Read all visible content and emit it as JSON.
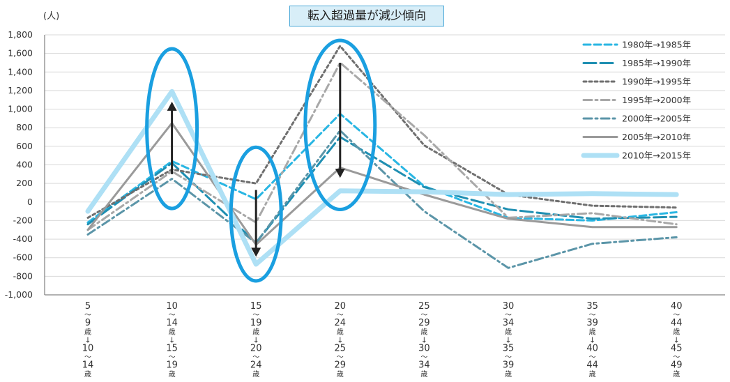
{
  "chart_data": {
    "type": "line",
    "title": "転入超過量が減少傾向",
    "ylabel": "(人)",
    "xlabel": "",
    "ylim": [
      -1000,
      1800
    ],
    "yticks": [
      -1000,
      -800,
      -600,
      -400,
      -200,
      0,
      200,
      400,
      600,
      800,
      1000,
      1200,
      1400,
      1600,
      1800
    ],
    "ytick_labels": [
      "-1,000",
      "-800",
      "-600",
      "-400",
      "-200",
      "0",
      "200",
      "400",
      "600",
      "800",
      "1,000",
      "1,200",
      "1,400",
      "1,600",
      "1,800"
    ],
    "grid": true,
    "legend_position": "top-right",
    "categories": [
      [
        "5",
        "～",
        "9",
        "歳",
        "↓",
        "10",
        "～",
        "14",
        "歳"
      ],
      [
        "10",
        "～",
        "14",
        "歳",
        "↓",
        "15",
        "～",
        "19",
        "歳"
      ],
      [
        "15",
        "～",
        "19",
        "歳",
        "↓",
        "20",
        "～",
        "24",
        "歳"
      ],
      [
        "20",
        "～",
        "24",
        "歳",
        "↓",
        "25",
        "～",
        "29",
        "歳"
      ],
      [
        "25",
        "～",
        "29",
        "歳",
        "↓",
        "30",
        "～",
        "34",
        "歳"
      ],
      [
        "30",
        "～",
        "34",
        "歳",
        "↓",
        "35",
        "～",
        "39",
        "歳"
      ],
      [
        "35",
        "～",
        "39",
        "歳",
        "↓",
        "40",
        "～",
        "44",
        "歳"
      ],
      [
        "40",
        "～",
        "44",
        "歳",
        "↓",
        "45",
        "～",
        "49",
        "歳"
      ]
    ],
    "series": [
      {
        "name": "1980年→1985年",
        "color": "#29b6e3",
        "style": "dash",
        "values": [
          -220,
          440,
          30,
          950,
          170,
          -170,
          -200,
          -110
        ]
      },
      {
        "name": "1985年→1990年",
        "color": "#1f8fb2",
        "style": "longdash",
        "values": [
          -240,
          420,
          -440,
          700,
          160,
          -80,
          -180,
          -160
        ]
      },
      {
        "name": "1990年→1995年",
        "color": "#6f6f6f",
        "style": "dot",
        "values": [
          -170,
          350,
          200,
          1680,
          610,
          80,
          -40,
          -60
        ]
      },
      {
        "name": "1995年→2000年",
        "color": "#a8a8a8",
        "style": "dashdot",
        "values": [
          -300,
          330,
          -220,
          1500,
          720,
          -170,
          -120,
          -240
        ]
      },
      {
        "name": "2000年→2005年",
        "color": "#5b95a8",
        "style": "dashdot",
        "values": [
          -350,
          250,
          -440,
          770,
          -100,
          -710,
          -450,
          -380
        ]
      },
      {
        "name": "2005年→2010年",
        "color": "#9a9a9a",
        "style": "solid",
        "values": [
          -300,
          850,
          -460,
          370,
          80,
          -180,
          -270,
          -270
        ]
      },
      {
        "name": "2010年→2015年",
        "color": "#aee0f5",
        "style": "thick",
        "values": [
          -100,
          1190,
          -670,
          120,
          110,
          80,
          90,
          80
        ]
      }
    ],
    "annotations": {
      "ellipses": [
        {
          "category_index": 1,
          "y_range": [
            -70,
            1650
          ]
        },
        {
          "category_index": 2,
          "y_range": [
            -850,
            590
          ]
        },
        {
          "category_index": 3,
          "y_range": [
            -80,
            1740
          ]
        }
      ],
      "arrows": [
        {
          "category_index": 1,
          "from": 300,
          "to": 1080
        },
        {
          "category_index": 2,
          "from": 130,
          "to": -590
        },
        {
          "category_index": 3,
          "from": 1500,
          "to": 260
        }
      ]
    }
  }
}
